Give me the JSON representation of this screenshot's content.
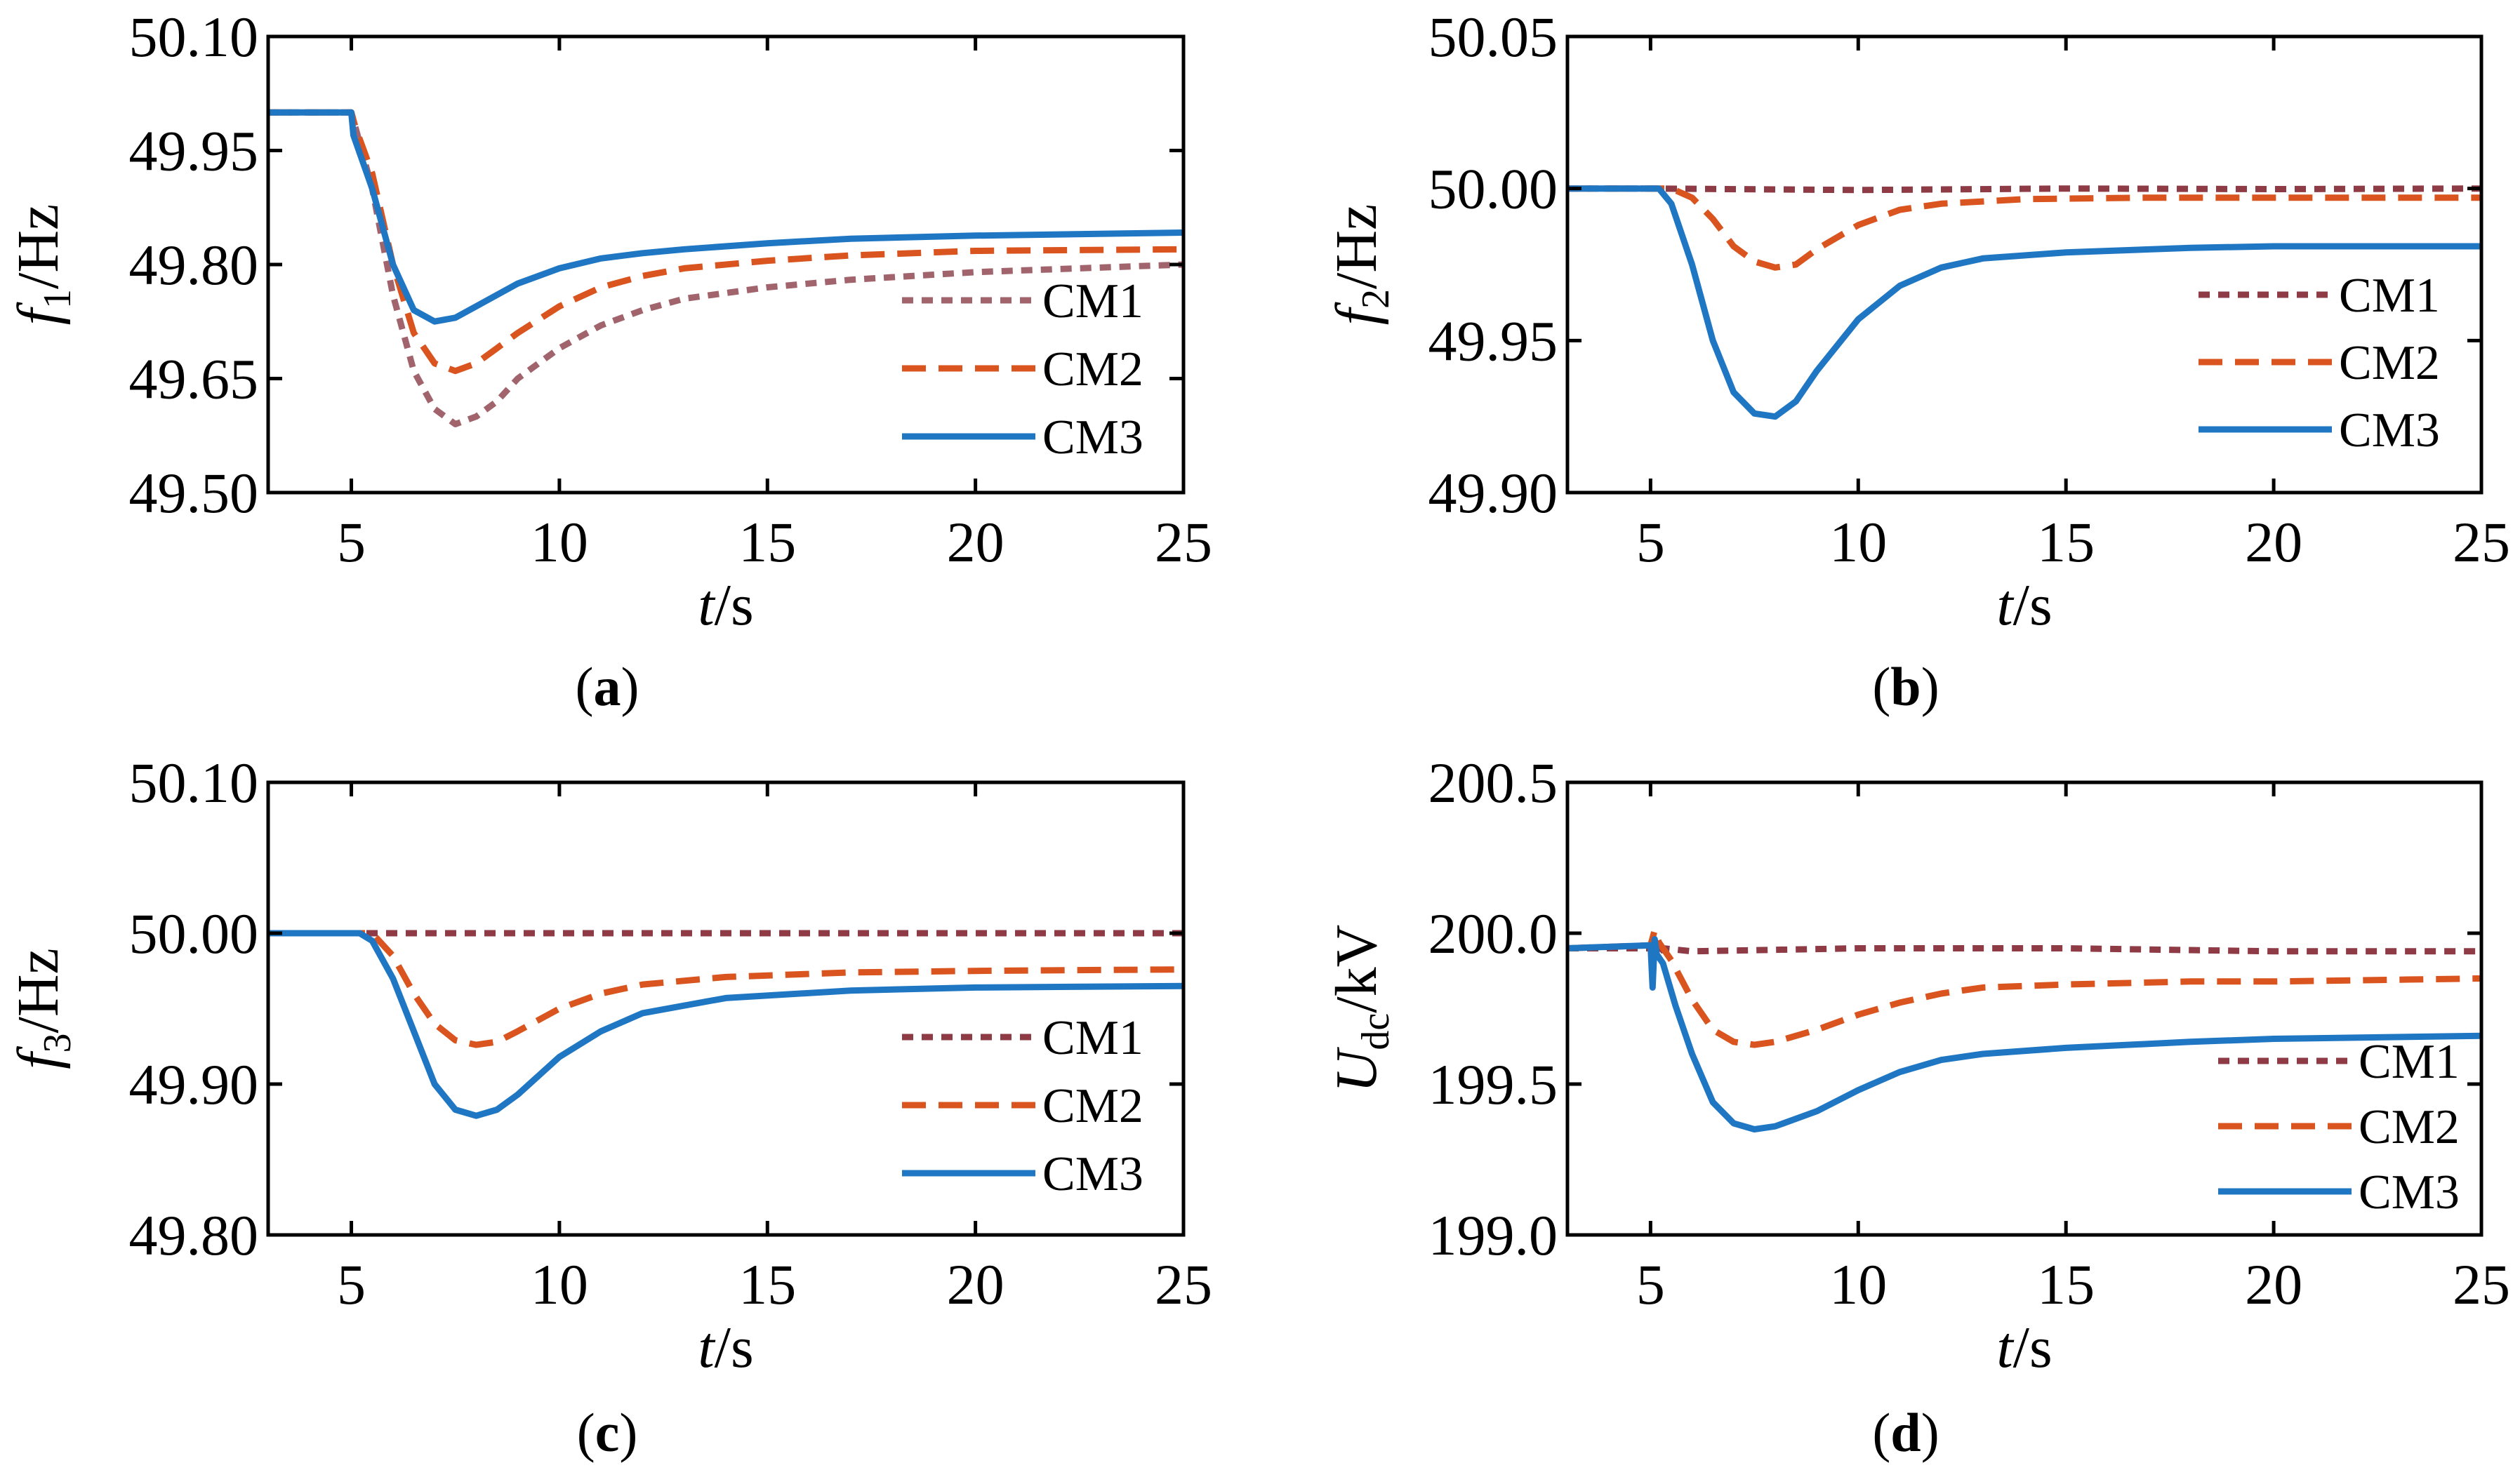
{
  "colors": {
    "CM1": "#A2646C",
    "CM1_dark": "#8E3B46",
    "CM2": "#D9541E",
    "CM3": "#1F77C4",
    "axis": "#000000"
  },
  "chart_data": [
    {
      "id": "a",
      "type": "line",
      "caption": "a",
      "xlabel": {
        "italic": "t",
        "rest": "/s"
      },
      "ylabel": {
        "italic": "f",
        "sub": "1",
        "rest": "/Hz"
      },
      "xlim": [
        3,
        25
      ],
      "ylim": [
        49.5,
        50.1
      ],
      "xticks": [
        5,
        10,
        15,
        20,
        25
      ],
      "xtick_labels": [
        "5",
        "10",
        "15",
        "20",
        "25"
      ],
      "yticks": [
        49.5,
        49.65,
        49.8,
        49.95,
        50.1
      ],
      "ytick_labels": [
        "49.50",
        "49.65",
        "49.80",
        "49.95",
        "50.10"
      ],
      "legend": [
        "CM1",
        "CM2",
        "CM3"
      ],
      "legend_position": "lower-right",
      "series": [
        {
          "name": "CM1",
          "style": "dotted",
          "color_key": "CM1",
          "x": [
            3,
            5,
            5.1,
            5.5,
            6,
            6.5,
            7,
            7.5,
            8,
            8.5,
            9,
            10,
            11,
            12,
            13,
            15,
            17,
            20,
            25
          ],
          "y": [
            50.0,
            50.0,
            49.98,
            49.9,
            49.76,
            49.66,
            49.61,
            49.59,
            49.6,
            49.62,
            49.65,
            49.69,
            49.72,
            49.74,
            49.755,
            49.77,
            49.78,
            49.79,
            49.8
          ]
        },
        {
          "name": "CM2",
          "style": "dashed",
          "color_key": "CM2",
          "x": [
            3,
            5,
            5.1,
            5.5,
            6,
            6.5,
            7,
            7.5,
            8,
            8.5,
            9,
            10,
            11,
            12,
            13,
            15,
            17,
            20,
            25
          ],
          "y": [
            50.0,
            50.0,
            49.98,
            49.92,
            49.8,
            49.71,
            49.67,
            49.66,
            49.67,
            49.69,
            49.71,
            49.745,
            49.77,
            49.785,
            49.795,
            49.805,
            49.812,
            49.818,
            49.82
          ]
        },
        {
          "name": "CM3",
          "style": "solid",
          "color_key": "CM3",
          "x": [
            3,
            5,
            5.05,
            5.5,
            6,
            6.5,
            7,
            7.5,
            8,
            8.5,
            9,
            10,
            11,
            12,
            13,
            15,
            17,
            20,
            25
          ],
          "y": [
            50.0,
            50.0,
            49.97,
            49.9,
            49.8,
            49.74,
            49.725,
            49.73,
            49.745,
            49.76,
            49.775,
            49.795,
            49.808,
            49.815,
            49.82,
            49.828,
            49.834,
            49.838,
            49.842
          ]
        }
      ]
    },
    {
      "id": "b",
      "type": "line",
      "caption": "b",
      "xlabel": {
        "italic": "t",
        "rest": "/s"
      },
      "ylabel": {
        "italic": "f",
        "sub": "2",
        "rest": "/Hz"
      },
      "xlim": [
        3,
        25
      ],
      "ylim": [
        49.9,
        50.05
      ],
      "xticks": [
        5,
        10,
        15,
        20,
        25
      ],
      "xtick_labels": [
        "5",
        "10",
        "15",
        "20",
        "25"
      ],
      "yticks": [
        49.9,
        49.95,
        50.0,
        50.05
      ],
      "ytick_labels": [
        "49.90",
        "49.95",
        "50.00",
        "50.05"
      ],
      "legend": [
        "CM1",
        "CM2",
        "CM3"
      ],
      "legend_position": "right",
      "series": [
        {
          "name": "CM1",
          "style": "dotted",
          "color_key": "CM1_dark",
          "x": [
            3,
            5,
            10,
            15,
            20,
            25
          ],
          "y": [
            50.0,
            50.0,
            49.9995,
            50.0,
            49.9998,
            50.0
          ]
        },
        {
          "name": "CM2",
          "style": "dashed",
          "color_key": "CM2",
          "x": [
            3,
            5.5,
            6,
            6.5,
            7,
            7.5,
            8,
            8.5,
            9,
            10,
            11,
            12,
            14,
            17,
            20,
            25
          ],
          "y": [
            50.0,
            50.0,
            49.997,
            49.99,
            49.981,
            49.976,
            49.974,
            49.975,
            49.98,
            49.988,
            49.993,
            49.995,
            49.9965,
            49.997,
            49.997,
            49.997
          ]
        },
        {
          "name": "CM3",
          "style": "solid",
          "color_key": "CM3",
          "x": [
            3,
            5.2,
            5.5,
            6,
            6.5,
            7,
            7.5,
            8,
            8.5,
            9,
            10,
            11,
            12,
            13,
            15,
            18,
            20,
            25
          ],
          "y": [
            50.0,
            50.0,
            49.995,
            49.975,
            49.95,
            49.933,
            49.926,
            49.925,
            49.93,
            49.94,
            49.957,
            49.968,
            49.974,
            49.977,
            49.979,
            49.9805,
            49.981,
            49.981
          ]
        }
      ]
    },
    {
      "id": "c",
      "type": "line",
      "caption": "c",
      "xlabel": {
        "italic": "t",
        "rest": "/s"
      },
      "ylabel": {
        "italic": "f",
        "sub": "3",
        "rest": "/Hz"
      },
      "xlim": [
        3,
        25
      ],
      "ylim": [
        49.8,
        50.1
      ],
      "xticks": [
        5,
        10,
        15,
        20,
        25
      ],
      "xtick_labels": [
        "5",
        "10",
        "15",
        "20",
        "25"
      ],
      "yticks": [
        49.8,
        49.9,
        50.0,
        50.1
      ],
      "ytick_labels": [
        "49.80",
        "49.90",
        "50.00",
        "50.10"
      ],
      "legend": [
        "CM1",
        "CM2",
        "CM3"
      ],
      "legend_position": "lower-right",
      "series": [
        {
          "name": "CM1",
          "style": "dotted",
          "color_key": "CM1_dark",
          "x": [
            3,
            5,
            10,
            15,
            20,
            25
          ],
          "y": [
            50.0,
            50.0,
            50.0,
            50.0,
            50.0,
            50.0
          ]
        },
        {
          "name": "CM2",
          "style": "dashed",
          "color_key": "CM2",
          "x": [
            3,
            5.5,
            6,
            6.5,
            7,
            7.5,
            8,
            8.5,
            9,
            10,
            11,
            12,
            14,
            17,
            20,
            25
          ],
          "y": [
            50.0,
            50.0,
            49.985,
            49.96,
            49.94,
            49.929,
            49.926,
            49.928,
            49.935,
            49.95,
            49.96,
            49.966,
            49.971,
            49.974,
            49.975,
            49.976
          ]
        },
        {
          "name": "CM3",
          "style": "solid",
          "color_key": "CM3",
          "x": [
            3,
            5.2,
            5.5,
            6,
            6.5,
            7,
            7.5,
            8,
            8.5,
            9,
            10,
            11,
            12,
            14,
            17,
            20,
            25
          ],
          "y": [
            50.0,
            50.0,
            49.995,
            49.97,
            49.935,
            49.9,
            49.883,
            49.879,
            49.883,
            49.893,
            49.918,
            49.935,
            49.947,
            49.957,
            49.962,
            49.964,
            49.965
          ]
        }
      ]
    },
    {
      "id": "d",
      "type": "line",
      "caption": "d",
      "xlabel": {
        "italic": "t",
        "rest": "/s"
      },
      "ylabel": {
        "italic": "U",
        "sub": "dc",
        "rest": "/kV"
      },
      "xlim": [
        3,
        25
      ],
      "ylim": [
        199.0,
        200.5
      ],
      "xticks": [
        5,
        10,
        15,
        20,
        25
      ],
      "xtick_labels": [
        "5",
        "10",
        "15",
        "20",
        "25"
      ],
      "yticks": [
        199.0,
        199.5,
        200.0,
        200.5
      ],
      "ytick_labels": [
        "199.0",
        "199.5",
        "200.0",
        "200.5"
      ],
      "legend": [
        "CM1",
        "CM2",
        "CM3"
      ],
      "legend_position": "lower-right",
      "series": [
        {
          "name": "CM1",
          "style": "dotted",
          "color_key": "CM1_dark",
          "x": [
            3,
            5,
            5.05,
            5.15,
            5.3,
            6,
            10,
            15,
            20,
            25
          ],
          "y": [
            199.95,
            199.95,
            199.99,
            199.93,
            199.95,
            199.94,
            199.95,
            199.95,
            199.94,
            199.94
          ]
        },
        {
          "name": "CM2",
          "style": "dashed",
          "color_key": "CM2",
          "x": [
            3,
            5,
            5.1,
            5.2,
            5.5,
            6,
            6.5,
            7,
            7.5,
            8,
            9,
            10,
            11,
            12,
            13,
            15,
            18,
            20,
            25
          ],
          "y": [
            199.95,
            199.96,
            200.01,
            199.97,
            199.91,
            199.78,
            199.68,
            199.64,
            199.63,
            199.64,
            199.68,
            199.73,
            199.77,
            199.8,
            199.82,
            199.83,
            199.84,
            199.84,
            199.85
          ]
        },
        {
          "name": "CM3",
          "style": "solid",
          "color_key": "CM3",
          "x": [
            3,
            5,
            5.05,
            5.1,
            5.15,
            5.3,
            5.6,
            6,
            6.5,
            7,
            7.5,
            8,
            9,
            10,
            11,
            12,
            13,
            15,
            18,
            20,
            25
          ],
          "y": [
            199.95,
            199.96,
            199.82,
            199.98,
            199.93,
            199.9,
            199.76,
            199.6,
            199.44,
            199.37,
            199.35,
            199.36,
            199.41,
            199.48,
            199.54,
            199.58,
            199.6,
            199.62,
            199.64,
            199.65,
            199.66
          ]
        }
      ]
    }
  ]
}
